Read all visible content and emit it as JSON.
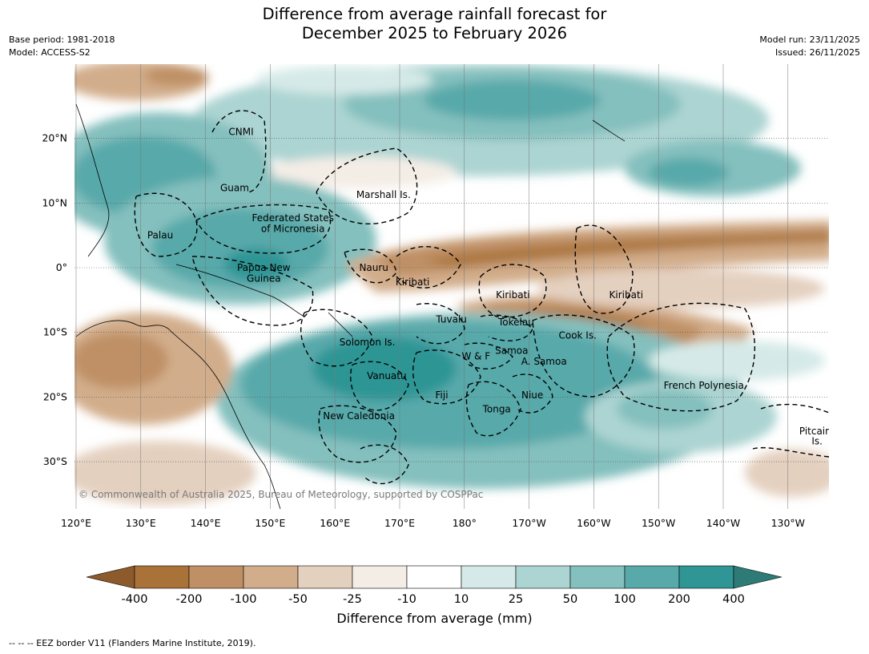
{
  "title_line1": "Difference from average rainfall forecast for",
  "title_line2": "December 2025 to February 2026",
  "base_period": "Base period: 1981-2018",
  "model": "Model: ACCESS-S2",
  "model_run": "Model run: 23/11/2025",
  "issued": "Issued: 26/11/2025",
  "copyright": "© Commonwealth of Australia 2025, Bureau of Meteorology, supported by COSPPac",
  "lon_ticks": [
    "120°E",
    "130°E",
    "140°E",
    "150°E",
    "160°E",
    "170°E",
    "180°",
    "170°W",
    "160°W",
    "150°W",
    "140°W",
    "130°W"
  ],
  "lat_ticks": [
    "20°N",
    "10°N",
    "0°",
    "10°S",
    "20°S",
    "30°S"
  ],
  "regions": [
    {
      "name": "CNMI",
      "lon": 145.5,
      "lat": 21
    },
    {
      "name": "Guam",
      "lon": 144.5,
      "lat": 12.3
    },
    {
      "name": "Marshall Is.",
      "lon": 167.5,
      "lat": 11.3
    },
    {
      "name": "Federated States",
      "lon": 153.5,
      "lat": 7.7
    },
    {
      "name": "of Micronesia",
      "lon": 153.5,
      "lat": 6
    },
    {
      "name": "Palau",
      "lon": 133,
      "lat": 5
    },
    {
      "name": "Papua New",
      "lon": 149,
      "lat": 0
    },
    {
      "name": "Guinea",
      "lon": 149,
      "lat": -1.7
    },
    {
      "name": "Nauru",
      "lon": 166,
      "lat": 0
    },
    {
      "name": "Kiribati",
      "lon": 172,
      "lat": -2.2
    },
    {
      "name": "Kiribati",
      "lon": 187.5,
      "lat": -4.2
    },
    {
      "name": "Kiribati",
      "lon": 205,
      "lat": -4.2
    },
    {
      "name": "Tuvalu",
      "lon": 178,
      "lat": -8
    },
    {
      "name": "Tokelau",
      "lon": 188,
      "lat": -8.4
    },
    {
      "name": "Cook Is.",
      "lon": 197.5,
      "lat": -10.5
    },
    {
      "name": "Solomon Is.",
      "lon": 165,
      "lat": -11.5
    },
    {
      "name": "Samoa",
      "lon": 187.3,
      "lat": -12.8
    },
    {
      "name": "W & F",
      "lon": 181.8,
      "lat": -13.7
    },
    {
      "name": "A. Samoa",
      "lon": 192.3,
      "lat": -14.5
    },
    {
      "name": "Vanuatu",
      "lon": 168,
      "lat": -16.7
    },
    {
      "name": "French Polynesia",
      "lon": 217,
      "lat": -18.2
    },
    {
      "name": "Fiji",
      "lon": 176.5,
      "lat": -19.7
    },
    {
      "name": "Niue",
      "lon": 190.5,
      "lat": -19.7
    },
    {
      "name": "Tonga",
      "lon": 185,
      "lat": -21.9
    },
    {
      "name": "New Caledonia",
      "lon": 163.7,
      "lat": -22.9
    },
    {
      "name": "Pitcairn",
      "lon": 234.5,
      "lat": -25.3
    },
    {
      "name": "Is.",
      "lon": 234.5,
      "lat": -26.8
    }
  ],
  "colorbar": {
    "ticks": [
      "-400",
      "-200",
      "-100",
      "-50",
      "-25",
      "-10",
      "10",
      "25",
      "50",
      "100",
      "200",
      "400"
    ],
    "colors": [
      "#8c5a2b",
      "#a87238",
      "#bf9065",
      "#d2ad8b",
      "#e4d0bf",
      "#f4ede6",
      "#ffffff",
      "#d5eae8",
      "#acd4d2",
      "#84c0be",
      "#58a9aa",
      "#2f9595",
      "#2d7a77"
    ],
    "label": "Difference from average (mm)"
  },
  "footnote": "--  --  -- EEZ border V11 (Flanders Marine Institute, 2019)."
}
